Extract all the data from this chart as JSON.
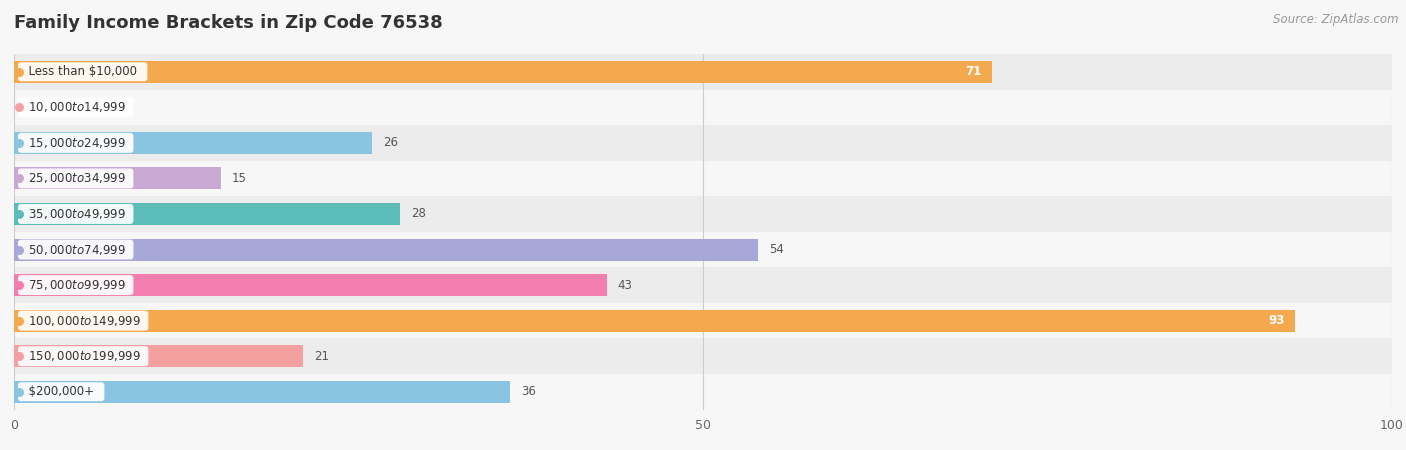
{
  "title": "Family Income Brackets in Zip Code 76538",
  "source": "Source: ZipAtlas.com",
  "categories": [
    "Less than $10,000",
    "$10,000 to $14,999",
    "$15,000 to $24,999",
    "$25,000 to $34,999",
    "$35,000 to $49,999",
    "$50,000 to $74,999",
    "$75,000 to $99,999",
    "$100,000 to $149,999",
    "$150,000 to $199,999",
    "$200,000+"
  ],
  "values": [
    71,
    0,
    26,
    15,
    28,
    54,
    43,
    93,
    21,
    36
  ],
  "bar_colors": [
    "#f5a94e",
    "#f4a0a0",
    "#89c4e1",
    "#c9a8d4",
    "#5bbcb8",
    "#a8a8d8",
    "#f47eb0",
    "#f5a94e",
    "#f4a0a0",
    "#89c4e1"
  ],
  "xlim": [
    0,
    100
  ],
  "background_color": "#f7f7f7",
  "row_alt_color": "#ececec",
  "row_base_color": "#f7f7f7",
  "title_fontsize": 13,
  "source_fontsize": 8.5,
  "bar_height": 0.62,
  "value_fontsize": 8.5,
  "label_fontsize": 8.5
}
